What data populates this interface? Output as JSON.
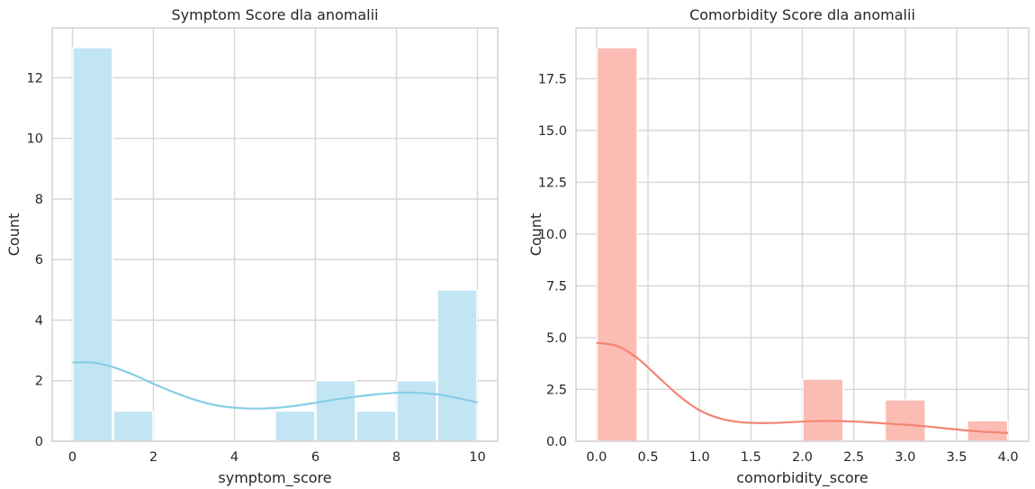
{
  "chart_data": [
    {
      "type": "bar",
      "title": "Symptom Score dla anomalii",
      "xlabel": "symptom_score",
      "ylabel": "Count",
      "xlim": [
        -0.5,
        10.5
      ],
      "ylim": [
        0,
        13.65
      ],
      "xticks": [
        0,
        2,
        4,
        6,
        8,
        10
      ],
      "xtick_labels": [
        "0",
        "2",
        "4",
        "6",
        "8",
        "10"
      ],
      "yticks": [
        0,
        2,
        4,
        6,
        8,
        10,
        12
      ],
      "ytick_labels": [
        "0",
        "2",
        "4",
        "6",
        "8",
        "10",
        "12"
      ],
      "bins": [
        [
          0,
          1
        ],
        [
          1,
          2
        ],
        [
          2,
          3
        ],
        [
          3,
          4
        ],
        [
          4,
          5
        ],
        [
          5,
          6
        ],
        [
          6,
          7
        ],
        [
          7,
          8
        ],
        [
          8,
          9
        ],
        [
          9,
          10
        ]
      ],
      "values": [
        13,
        1,
        0,
        0,
        0,
        1,
        2,
        1,
        2,
        5
      ],
      "kde": {
        "x": [
          0,
          0.5,
          1,
          1.5,
          2,
          2.5,
          3,
          3.5,
          4,
          4.5,
          5,
          5.5,
          6,
          6.5,
          7,
          7.5,
          8,
          8.5,
          9,
          9.5,
          10
        ],
        "y": [
          2.6,
          2.6,
          2.45,
          2.2,
          1.9,
          1.62,
          1.38,
          1.2,
          1.11,
          1.08,
          1.1,
          1.17,
          1.27,
          1.38,
          1.47,
          1.55,
          1.6,
          1.6,
          1.55,
          1.43,
          1.28
        ]
      },
      "grid": true,
      "bar_color": "#c2e5f4",
      "line_color": "#87cde6"
    },
    {
      "type": "bar",
      "title": "Comorbidity Score dla anomalii",
      "xlabel": "comorbidity_score",
      "ylabel": "Count",
      "xlim": [
        -0.2,
        4.2
      ],
      "ylim": [
        0,
        19.95
      ],
      "xticks": [
        0,
        0.5,
        1,
        1.5,
        2,
        2.5,
        3,
        3.5,
        4
      ],
      "xtick_labels": [
        "0.0",
        "0.5",
        "1.0",
        "1.5",
        "2.0",
        "2.5",
        "3.0",
        "3.5",
        "4.0"
      ],
      "yticks": [
        0,
        2.5,
        5,
        7.5,
        10,
        12.5,
        15,
        17.5
      ],
      "ytick_labels": [
        "0.0",
        "2.5",
        "5.0",
        "7.5",
        "10.0",
        "12.5",
        "15.0",
        "17.5"
      ],
      "bins": [
        [
          0,
          0.4
        ],
        [
          0.4,
          0.8
        ],
        [
          0.8,
          1.2
        ],
        [
          1.2,
          1.6
        ],
        [
          1.6,
          2.0
        ],
        [
          2.0,
          2.4
        ],
        [
          2.4,
          2.8
        ],
        [
          2.8,
          3.2
        ],
        [
          3.2,
          3.6
        ],
        [
          3.6,
          4.0
        ]
      ],
      "values": [
        19,
        0,
        0,
        0,
        0,
        3,
        0,
        2,
        0,
        1
      ],
      "kde": {
        "x": [
          0,
          0.2,
          0.4,
          0.6,
          0.8,
          1.0,
          1.2,
          1.4,
          1.6,
          1.8,
          2.0,
          2.2,
          2.4,
          2.6,
          2.8,
          3.0,
          3.2,
          3.4,
          3.6,
          3.8,
          4.0
        ],
        "y": [
          4.75,
          4.6,
          4.0,
          3.1,
          2.2,
          1.5,
          1.1,
          0.92,
          0.88,
          0.9,
          0.95,
          0.98,
          0.97,
          0.93,
          0.86,
          0.8,
          0.72,
          0.62,
          0.52,
          0.45,
          0.4
        ]
      },
      "grid": true,
      "bar_color": "#fbbcb4",
      "line_color": "#f48474"
    }
  ]
}
